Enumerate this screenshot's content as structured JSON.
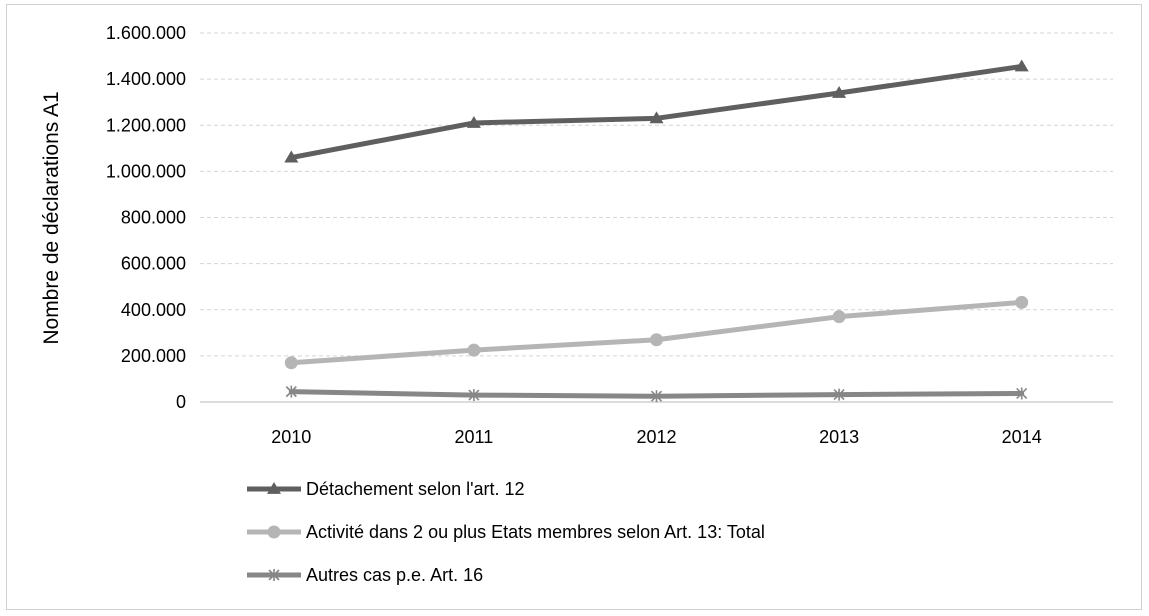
{
  "chart_data": {
    "type": "line",
    "title": "",
    "xlabel": "",
    "ylabel": "Nombre de déclarations A1",
    "categories": [
      "2010",
      "2011",
      "2012",
      "2013",
      "2014"
    ],
    "ylim": [
      0,
      1600000
    ],
    "yticks": [
      0,
      200000,
      400000,
      600000,
      800000,
      1000000,
      1200000,
      1400000,
      1600000
    ],
    "ytick_labels": [
      "0",
      "200.000",
      "400.000",
      "600.000",
      "800.000",
      "1.000.000",
      "1.200.000",
      "1.400.000",
      "1.600.000"
    ],
    "grid": true,
    "legend_position": "bottom",
    "series": [
      {
        "name": "Détachement selon l'art. 12",
        "values": [
          1060000,
          1210000,
          1230000,
          1340000,
          1455000
        ],
        "color": "#5f5f5f",
        "marker": "triangle"
      },
      {
        "name": "Activité dans 2 ou plus Etats membres selon Art. 13: Total",
        "values": [
          170000,
          225000,
          270000,
          370000,
          432000
        ],
        "color": "#b5b5b5",
        "marker": "circle"
      },
      {
        "name": "Autres cas p.e. Art. 16",
        "values": [
          45000,
          30000,
          25000,
          32000,
          37000
        ],
        "color": "#878787",
        "marker": "asterisk"
      }
    ]
  }
}
